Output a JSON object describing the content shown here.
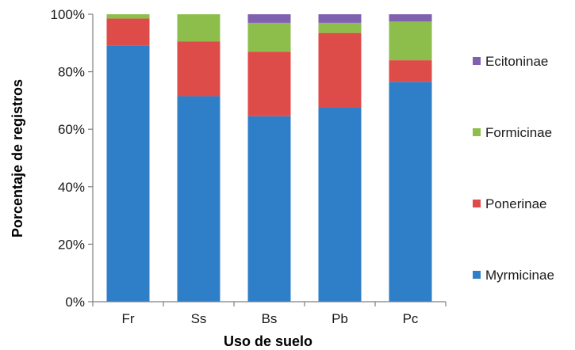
{
  "chart_data": {
    "type": "bar",
    "stacked": true,
    "percent": true,
    "categories": [
      "Fr",
      "Ss",
      "Bs",
      "Pb",
      "Pc"
    ],
    "series": [
      {
        "name": "Myrmicinae",
        "color": "#2E7FC8",
        "values": [
          89,
          71.5,
          64.5,
          67.5,
          76.5
        ]
      },
      {
        "name": "Ponerinae",
        "color": "#DE4C4A",
        "values": [
          9.5,
          19,
          22.5,
          26,
          7.5
        ]
      },
      {
        "name": "Formicinae",
        "color": "#8DBE4B",
        "values": [
          1.5,
          9.5,
          10,
          3.5,
          13.5
        ]
      },
      {
        "name": "Ecitoninae",
        "color": "#8061B0",
        "values": [
          0,
          0,
          3,
          3,
          2.5
        ]
      }
    ],
    "xlabel": "Uso de suelo",
    "ylabel": "Porcentaje de registros",
    "ylim": [
      0,
      100
    ],
    "yticks": [
      "0%",
      "20%",
      "40%",
      "60%",
      "80%",
      "100%"
    ],
    "grid": false,
    "legend_position": "right"
  }
}
